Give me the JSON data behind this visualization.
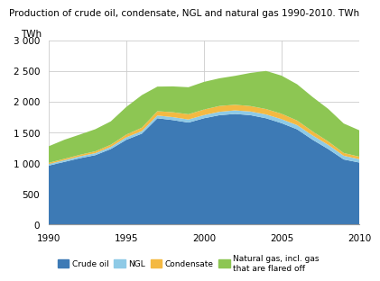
{
  "title": "Production of crude oil, condensate, NGL and natural gas 1990-2010. TWh",
  "ylabel": "TWh",
  "years": [
    1990,
    1991,
    1992,
    1993,
    1994,
    1995,
    1996,
    1997,
    1998,
    1999,
    2000,
    2001,
    2002,
    2003,
    2004,
    2005,
    2006,
    2007,
    2008,
    2009,
    2010
  ],
  "crude_oil": [
    960,
    1020,
    1080,
    1130,
    1230,
    1380,
    1480,
    1730,
    1700,
    1660,
    1730,
    1780,
    1800,
    1780,
    1730,
    1650,
    1550,
    1380,
    1230,
    1060,
    1010
  ],
  "ngl": [
    25,
    28,
    30,
    32,
    35,
    40,
    42,
    45,
    48,
    50,
    52,
    55,
    58,
    60,
    62,
    65,
    68,
    70,
    68,
    60,
    55
  ],
  "condensate": [
    20,
    22,
    25,
    30,
    35,
    45,
    55,
    70,
    80,
    85,
    90,
    95,
    92,
    88,
    88,
    88,
    75,
    65,
    55,
    45,
    40
  ],
  "nat_gas": [
    270,
    310,
    330,
    360,
    380,
    450,
    530,
    400,
    420,
    440,
    450,
    450,
    470,
    540,
    620,
    620,
    590,
    560,
    530,
    480,
    430
  ],
  "colors": {
    "crude_oil": "#3d7ab5",
    "ngl": "#8ecae6",
    "condensate": "#f4b942",
    "nat_gas": "#8dc653"
  },
  "ylim": [
    0,
    3000
  ],
  "yticks": [
    0,
    500,
    1000,
    1500,
    2000,
    2500,
    3000
  ],
  "ytick_labels": [
    "0",
    "500",
    "1 000",
    "1 500",
    "2 000",
    "2 500",
    "3 000"
  ],
  "xticks": [
    1990,
    1995,
    2000,
    2005,
    2010
  ],
  "background_color": "#ffffff",
  "legend_labels": [
    "Crude oil",
    "NGL",
    "Condensate",
    "Natural gas, incl. gas\nthat are flared off"
  ]
}
